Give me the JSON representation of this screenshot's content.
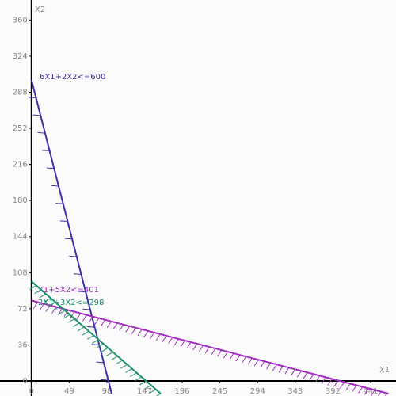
{
  "chart_data": {
    "type": "constraint-lines",
    "x_label": "X1",
    "y_label": "X2",
    "xlim": [
      -41,
      474
    ],
    "ylim": [
      -15,
      380
    ],
    "xticks": [
      0,
      49,
      98,
      147,
      196,
      245,
      294,
      343,
      392,
      441
    ],
    "yticks": [
      0,
      36,
      72,
      108,
      144,
      180,
      216,
      252,
      288,
      324,
      360
    ],
    "constraints": [
      {
        "label": "6X1+2X2<=600",
        "x_intercept": 100,
        "y_intercept": 300,
        "color": "#3a32a8"
      },
      {
        "label": "X1+5X2<=401",
        "x_intercept": 401,
        "y_intercept": 80.2,
        "color": "#a02cc0"
      },
      {
        "label": "2X1+3X2<=298",
        "x_intercept": 149,
        "y_intercept": 99.3,
        "color": "#1f8f6a"
      }
    ]
  }
}
